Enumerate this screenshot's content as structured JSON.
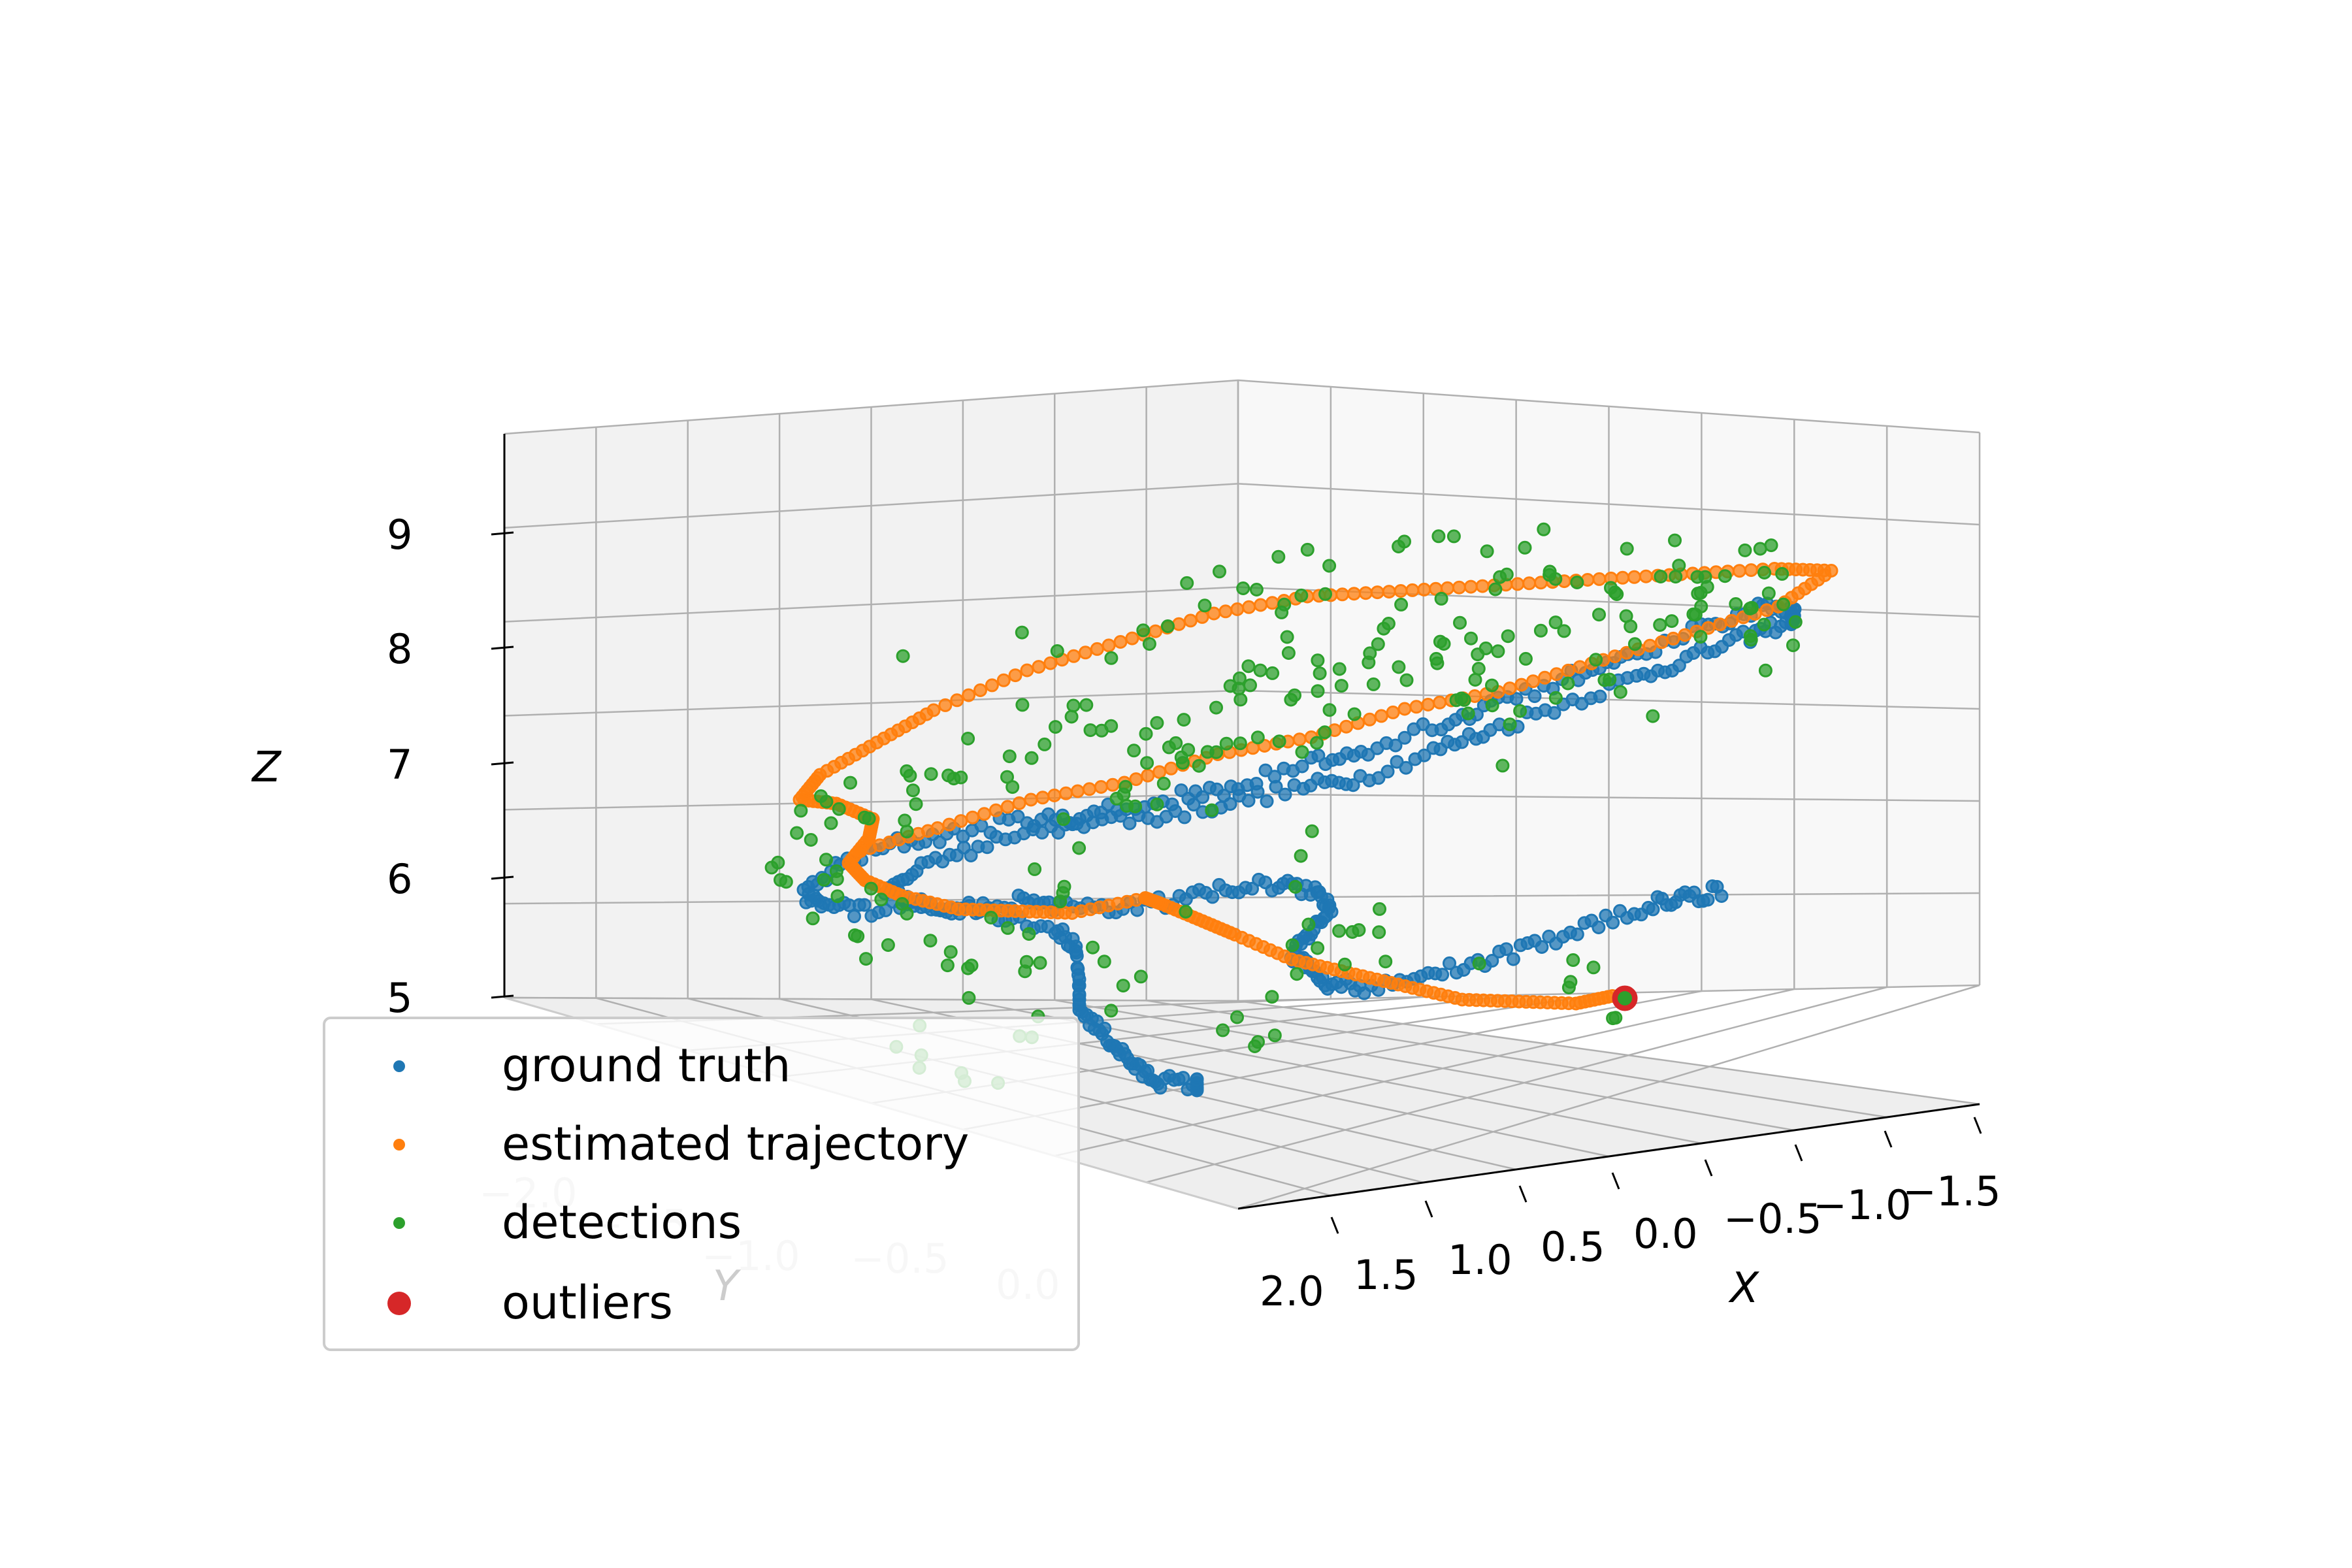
{
  "chart_data": {
    "type": "scatter",
    "projection": "3d",
    "title": "",
    "xlabel": "X",
    "ylabel": "Y",
    "zlabel": "Z",
    "xlim": [
      -1.5,
      2.2
    ],
    "ylim": [
      -2.3,
      0.2
    ],
    "zlim": [
      4.5,
      9.7
    ],
    "x_ticks": [
      "2.0",
      "1.5",
      "1.0",
      "0.5",
      "0.0",
      "−0.5",
      "−1.0",
      "−1.5"
    ],
    "y_ticks": [
      "−2.0",
      "−1.5",
      "−1.0",
      "−0.5",
      "0.0"
    ],
    "z_ticks": [
      "5",
      "6",
      "7",
      "8",
      "9"
    ],
    "grid": true,
    "legend_position": "lower-left",
    "series": [
      {
        "name": "ground truth",
        "color": "#1f77b4",
        "marker_size": 3,
        "points": [
          [
            -1.0,
            -0.3,
            5.9
          ],
          [
            -0.9,
            -0.4,
            5.9
          ],
          [
            -0.8,
            -0.5,
            5.9
          ],
          [
            -0.6,
            -0.6,
            5.8
          ],
          [
            -0.4,
            -0.7,
            5.7
          ],
          [
            -0.2,
            -0.8,
            5.65
          ],
          [
            0.0,
            -0.9,
            5.6
          ],
          [
            0.2,
            -1.0,
            5.6
          ],
          [
            0.3,
            -1.1,
            5.7
          ],
          [
            0.4,
            -1.1,
            5.9
          ],
          [
            0.4,
            -1.2,
            6.0
          ],
          [
            0.3,
            -1.2,
            6.2
          ],
          [
            0.2,
            -1.2,
            6.4
          ],
          [
            0.2,
            -1.3,
            6.6
          ],
          [
            0.3,
            -1.4,
            6.7
          ],
          [
            0.4,
            -1.6,
            6.8
          ],
          [
            0.5,
            -1.8,
            6.8
          ],
          [
            0.7,
            -1.9,
            6.8
          ],
          [
            0.9,
            -2.0,
            6.9
          ],
          [
            1.1,
            -2.0,
            7.0
          ],
          [
            1.3,
            -2.1,
            7.0
          ],
          [
            1.5,
            -2.1,
            7.1
          ],
          [
            1.7,
            -2.2,
            7.1
          ],
          [
            1.9,
            -2.2,
            7.2
          ],
          [
            2.0,
            -2.2,
            7.3
          ],
          [
            1.9,
            -2.1,
            7.5
          ],
          [
            1.7,
            -2.0,
            7.6
          ],
          [
            1.5,
            -1.9,
            7.6
          ],
          [
            1.3,
            -1.7,
            7.6
          ],
          [
            1.1,
            -1.6,
            7.5
          ],
          [
            0.9,
            -1.4,
            7.4
          ],
          [
            0.7,
            -1.2,
            7.4
          ],
          [
            0.5,
            -1.0,
            7.4
          ],
          [
            0.3,
            -0.9,
            7.4
          ],
          [
            0.1,
            -0.7,
            7.5
          ],
          [
            -0.1,
            -0.6,
            7.6
          ],
          [
            -0.3,
            -0.4,
            7.7
          ],
          [
            -0.5,
            -0.2,
            7.8
          ],
          [
            -0.7,
            -0.1,
            7.9
          ],
          [
            -0.9,
            0.0,
            8.0
          ],
          [
            -1.1,
            0.0,
            8.1
          ],
          [
            -1.2,
            -0.1,
            8.2
          ],
          [
            -1.1,
            -0.2,
            8.3
          ],
          [
            -0.9,
            -0.3,
            8.2
          ],
          [
            -0.7,
            -0.5,
            8.1
          ],
          [
            -0.5,
            -0.6,
            8.0
          ],
          [
            -0.3,
            -0.8,
            7.9
          ],
          [
            -0.1,
            -0.9,
            7.8
          ],
          [
            0.1,
            -1.1,
            7.7
          ],
          [
            0.3,
            -1.2,
            7.7
          ],
          [
            0.5,
            -1.4,
            7.6
          ],
          [
            0.7,
            -1.5,
            7.6
          ],
          [
            0.9,
            -1.7,
            7.6
          ],
          [
            1.1,
            -1.8,
            7.5
          ],
          [
            1.3,
            -2.0,
            7.5
          ],
          [
            1.5,
            -2.1,
            7.4
          ],
          [
            1.6,
            -2.2,
            7.3
          ],
          [
            1.5,
            -2.1,
            7.1
          ],
          [
            1.2,
            -2.0,
            6.9
          ],
          [
            1.0,
            -1.9,
            6.7
          ],
          [
            0.9,
            -1.9,
            6.5
          ],
          [
            0.8,
            -2.0,
            6.2
          ],
          [
            0.8,
            -2.0,
            6.0
          ],
          [
            0.7,
            -2.0,
            5.8
          ],
          [
            0.6,
            -2.0,
            5.6
          ],
          [
            0.5,
            -2.0,
            5.4
          ],
          [
            0.4,
            -2.0,
            5.3
          ],
          [
            0.3,
            -1.9,
            5.2
          ]
        ]
      },
      {
        "name": "estimated trajectory",
        "color": "#ff7f0e",
        "marker_size": 3,
        "points": [
          [
            -0.3,
            -0.1,
            5.0
          ],
          [
            -0.2,
            -0.2,
            5.0
          ],
          [
            0.0,
            -0.3,
            5.1
          ],
          [
            0.2,
            -0.4,
            5.2
          ],
          [
            0.4,
            -0.5,
            5.4
          ],
          [
            0.6,
            -0.6,
            5.6
          ],
          [
            0.8,
            -0.7,
            5.8
          ],
          [
            1.0,
            -0.8,
            6.1
          ],
          [
            1.1,
            -0.9,
            6.3
          ],
          [
            1.2,
            -1.0,
            6.5
          ],
          [
            1.2,
            -1.1,
            6.6
          ],
          [
            1.4,
            -1.3,
            6.6
          ],
          [
            1.6,
            -1.4,
            6.7
          ],
          [
            1.8,
            -1.5,
            6.8
          ],
          [
            2.0,
            -1.6,
            7.0
          ],
          [
            2.1,
            -1.7,
            7.2
          ],
          [
            2.1,
            -1.8,
            7.4
          ],
          [
            2.0,
            -1.8,
            7.6
          ],
          [
            1.9,
            -1.9,
            7.8
          ],
          [
            2.0,
            -2.0,
            8.0
          ],
          [
            2.1,
            -2.1,
            8.1
          ],
          [
            2.0,
            -2.1,
            8.3
          ],
          [
            1.8,
            -2.0,
            8.5
          ],
          [
            1.6,
            -1.9,
            8.7
          ],
          [
            1.3,
            -1.7,
            8.9
          ],
          [
            1.0,
            -1.5,
            9.0
          ],
          [
            0.7,
            -1.3,
            9.1
          ],
          [
            0.4,
            -1.1,
            9.1
          ],
          [
            0.1,
            -0.9,
            9.0
          ],
          [
            -0.2,
            -0.7,
            8.9
          ],
          [
            -0.5,
            -0.5,
            8.8
          ],
          [
            -0.8,
            -0.3,
            8.7
          ],
          [
            -1.1,
            -0.1,
            8.6
          ],
          [
            -1.3,
            0.0,
            8.5
          ],
          [
            -1.2,
            -0.2,
            8.3
          ],
          [
            -0.9,
            -0.4,
            8.2
          ],
          [
            -0.6,
            -0.6,
            8.1
          ],
          [
            -0.3,
            -0.8,
            8.0
          ],
          [
            0.0,
            -1.0,
            8.0
          ],
          [
            0.3,
            -1.2,
            7.9
          ],
          [
            0.6,
            -1.4,
            7.9
          ],
          [
            0.9,
            -1.6,
            7.8
          ],
          [
            1.2,
            -1.8,
            7.8
          ],
          [
            1.5,
            -2.0,
            7.7
          ],
          [
            1.8,
            -2.1,
            7.6
          ]
        ]
      },
      {
        "name": "detections",
        "color": "#2ca02c",
        "marker_size": 3,
        "points": [
          [
            -1.2,
            -0.1,
            8.5
          ],
          [
            -1.0,
            -0.2,
            8.6
          ],
          [
            -0.8,
            -0.3,
            8.9
          ],
          [
            -0.6,
            -0.5,
            8.4
          ],
          [
            -0.4,
            -0.6,
            8.8
          ],
          [
            -0.2,
            -0.8,
            8.3
          ],
          [
            0.0,
            -0.9,
            8.7
          ],
          [
            0.2,
            -1.1,
            8.2
          ],
          [
            0.4,
            -1.2,
            8.9
          ],
          [
            0.6,
            -1.4,
            8.4
          ],
          [
            0.8,
            -1.5,
            8.0
          ],
          [
            1.0,
            -1.7,
            8.6
          ],
          [
            1.2,
            -1.8,
            8.1
          ],
          [
            1.4,
            -2.0,
            8.4
          ],
          [
            1.6,
            -2.1,
            7.9
          ],
          [
            1.8,
            -2.2,
            8.2
          ],
          [
            2.0,
            -2.2,
            7.7
          ],
          [
            2.1,
            -2.1,
            7.3
          ],
          [
            1.9,
            -2.0,
            7.1
          ],
          [
            1.7,
            -1.9,
            6.6
          ],
          [
            1.5,
            -1.7,
            6.3
          ],
          [
            1.3,
            -1.6,
            6.9
          ],
          [
            1.1,
            -1.4,
            7.5
          ],
          [
            0.9,
            -1.3,
            7.9
          ],
          [
            0.7,
            -1.1,
            8.3
          ],
          [
            0.5,
            -1.0,
            7.8
          ],
          [
            0.3,
            -0.8,
            8.5
          ],
          [
            0.1,
            -0.7,
            8.1
          ],
          [
            -0.1,
            -0.5,
            7.7
          ],
          [
            -0.3,
            -0.4,
            8.2
          ],
          [
            -0.5,
            -0.2,
            7.9
          ],
          [
            -0.7,
            -0.1,
            8.4
          ],
          [
            -0.9,
            0.0,
            8.0
          ],
          [
            -1.1,
            -0.1,
            7.9
          ],
          [
            1.6,
            -2.1,
            6.0
          ],
          [
            1.3,
            -1.9,
            5.6
          ],
          [
            1.0,
            -1.7,
            6.4
          ],
          [
            0.6,
            -1.2,
            5.4
          ],
          [
            0.4,
            -1.0,
            6.0
          ],
          [
            0.2,
            -0.8,
            5.7
          ],
          [
            0.9,
            -1.8,
            9.2
          ],
          [
            0.5,
            -1.4,
            9.3
          ],
          [
            0.0,
            -1.0,
            9.2
          ],
          [
            -0.5,
            -0.6,
            9.1
          ],
          [
            1.5,
            -2.0,
            9.0
          ],
          [
            -0.3,
            -0.2,
            5.1
          ]
        ]
      },
      {
        "name": "outliers",
        "color": "#d62728",
        "marker_size": 7,
        "points": [
          [
            -0.2,
            0.1,
            4.9
          ]
        ]
      }
    ]
  }
}
